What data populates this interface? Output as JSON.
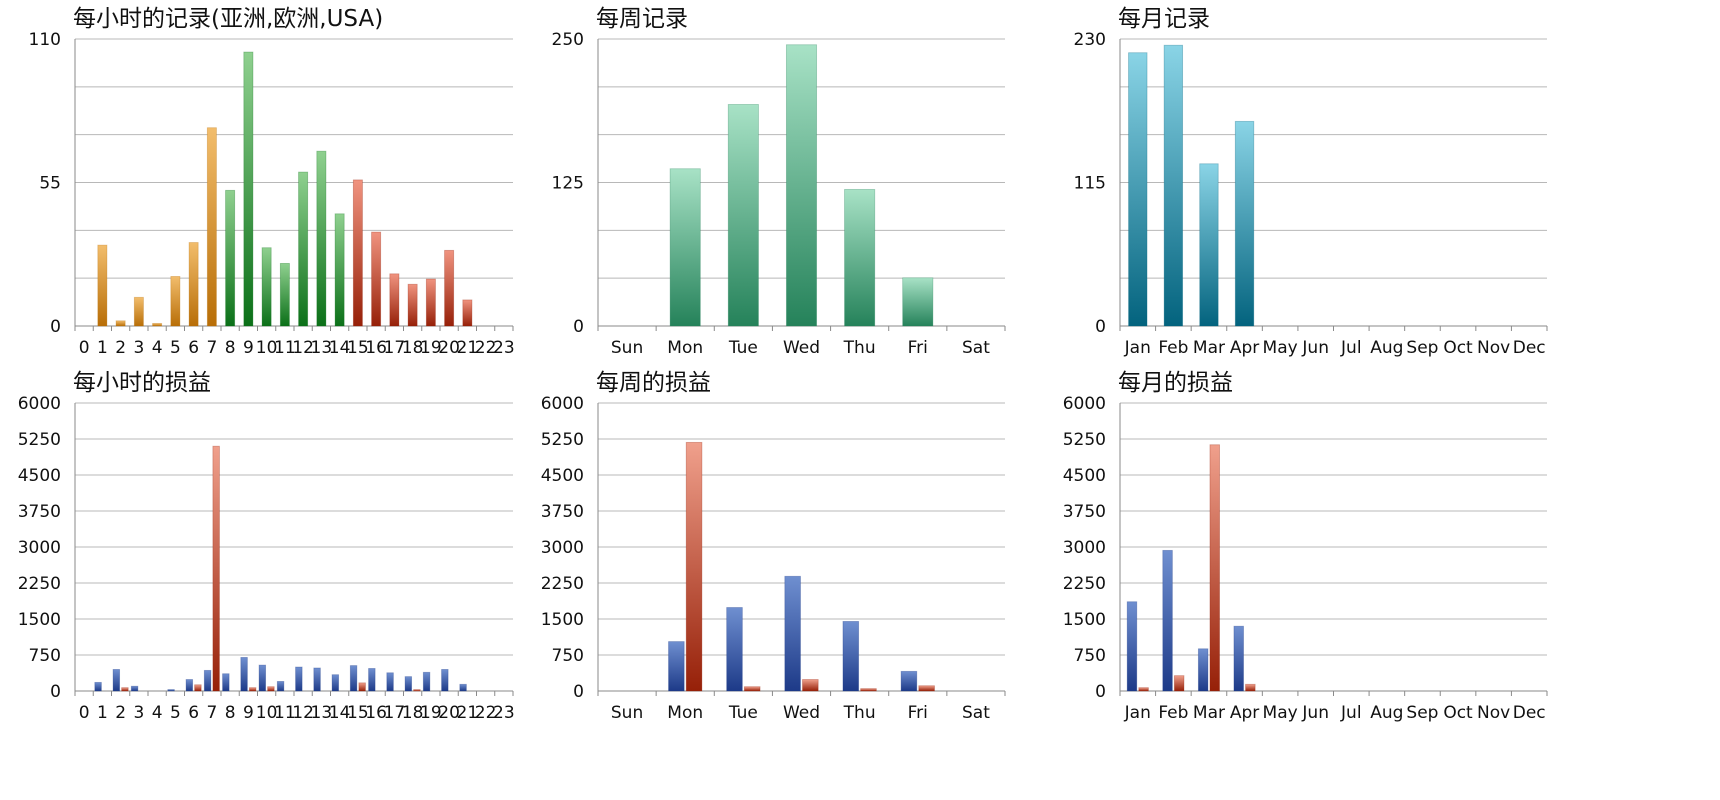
{
  "colors": {
    "orange": [
      "#f2bd6c",
      "#b86e07"
    ],
    "green": [
      "#8fd08f",
      "#0b7018"
    ],
    "red": [
      "#f0937f",
      "#962008"
    ],
    "weekly_green": [
      "#a8e2c6",
      "#25825a"
    ],
    "teal": [
      "#8ad4e6",
      "#03637e"
    ],
    "blue": [
      "#6f8fd0",
      "#1d3a88"
    ],
    "loss_red": [
      "#f0a08c",
      "#962008"
    ]
  },
  "chart_data": [
    {
      "type": "bar",
      "title": "每小时的记录(亚洲,欧洲,USA)",
      "categories": [
        "0",
        "1",
        "2",
        "3",
        "4",
        "5",
        "6",
        "7",
        "8",
        "9",
        "10",
        "11",
        "12",
        "13",
        "14",
        "15",
        "16",
        "17",
        "18",
        "19",
        "20",
        "21",
        "22",
        "23"
      ],
      "ylim": [
        0,
        110
      ],
      "yticks": [
        "0",
        "55",
        "110"
      ],
      "minor_grid": 6,
      "series": [
        {
          "values": [
            0,
            31,
            2,
            11,
            1,
            19,
            32,
            76,
            52,
            105,
            30,
            24,
            59,
            67,
            43,
            56,
            36,
            20,
            16,
            18,
            29,
            10,
            0,
            0
          ]
        }
      ],
      "bar_colors": [
        "orange",
        "orange",
        "orange",
        "orange",
        "orange",
        "orange",
        "orange",
        "orange",
        "green",
        "green",
        "green",
        "green",
        "green",
        "green",
        "green",
        "red",
        "red",
        "red",
        "red",
        "red",
        "red",
        "red",
        "red",
        "red"
      ]
    },
    {
      "type": "bar",
      "title": "每周记录",
      "categories": [
        "Sun",
        "Mon",
        "Tue",
        "Wed",
        "Thu",
        "Fri",
        "Sat"
      ],
      "ylim": [
        0,
        250
      ],
      "yticks": [
        "0",
        "125",
        "250"
      ],
      "minor_grid": 6,
      "series": [
        {
          "values": [
            0,
            137,
            193,
            245,
            119,
            42,
            0
          ]
        }
      ],
      "bar_colors": [
        "weekly_green"
      ]
    },
    {
      "type": "bar",
      "title": "每月记录",
      "categories": [
        "Jan",
        "Feb",
        "Mar",
        "Apr",
        "May",
        "Jun",
        "Jul",
        "Aug",
        "Sep",
        "Oct",
        "Nov",
        "Dec"
      ],
      "ylim": [
        0,
        230
      ],
      "yticks": [
        "0",
        "115",
        "230"
      ],
      "minor_grid": 6,
      "series": [
        {
          "values": [
            219,
            225,
            130,
            164,
            0,
            0,
            0,
            0,
            0,
            0,
            0,
            0
          ]
        }
      ],
      "bar_colors": [
        "teal"
      ]
    },
    {
      "type": "bar",
      "title": "每小时的损益",
      "categories": [
        "0",
        "1",
        "2",
        "3",
        "4",
        "5",
        "6",
        "7",
        "8",
        "9",
        "10",
        "11",
        "12",
        "13",
        "14",
        "15",
        "16",
        "17",
        "18",
        "19",
        "20",
        "21",
        "22",
        "23"
      ],
      "ylim": [
        0,
        6000
      ],
      "yticks": [
        "0",
        "750",
        "1500",
        "2250",
        "3000",
        "3750",
        "4500",
        "5250",
        "6000"
      ],
      "minor_grid": 8,
      "series": [
        {
          "values": [
            0,
            180,
            450,
            100,
            0,
            30,
            240,
            430,
            360,
            700,
            540,
            200,
            500,
            480,
            340,
            530,
            470,
            380,
            300,
            390,
            450,
            140,
            0,
            0
          ],
          "color": "blue"
        },
        {
          "values": [
            0,
            0,
            70,
            0,
            0,
            0,
            130,
            5100,
            0,
            70,
            90,
            0,
            0,
            0,
            0,
            170,
            0,
            0,
            30,
            0,
            0,
            0,
            0,
            0
          ],
          "color": "loss_red"
        }
      ]
    },
    {
      "type": "bar",
      "title": "每周的损益",
      "categories": [
        "Sun",
        "Mon",
        "Tue",
        "Wed",
        "Thu",
        "Fri",
        "Sat"
      ],
      "ylim": [
        0,
        6000
      ],
      "yticks": [
        "0",
        "750",
        "1500",
        "2250",
        "3000",
        "3750",
        "4500",
        "5250",
        "6000"
      ],
      "minor_grid": 8,
      "series": [
        {
          "values": [
            0,
            1030,
            1740,
            2390,
            1450,
            410,
            0
          ],
          "color": "blue"
        },
        {
          "values": [
            0,
            5180,
            90,
            240,
            50,
            110,
            0
          ],
          "color": "loss_red"
        }
      ]
    },
    {
      "type": "bar",
      "title": "每月的损益",
      "categories": [
        "Jan",
        "Feb",
        "Mar",
        "Apr",
        "May",
        "Jun",
        "Jul",
        "Aug",
        "Sep",
        "Oct",
        "Nov",
        "Dec"
      ],
      "ylim": [
        0,
        6000
      ],
      "yticks": [
        "0",
        "750",
        "1500",
        "2250",
        "3000",
        "3750",
        "4500",
        "5250",
        "6000"
      ],
      "minor_grid": 8,
      "series": [
        {
          "values": [
            1860,
            2930,
            880,
            1350,
            0,
            0,
            0,
            0,
            0,
            0,
            0,
            0
          ],
          "color": "blue"
        },
        {
          "values": [
            70,
            320,
            5130,
            140,
            0,
            0,
            0,
            0,
            0,
            0,
            0,
            0
          ],
          "color": "loss_red"
        }
      ]
    }
  ]
}
